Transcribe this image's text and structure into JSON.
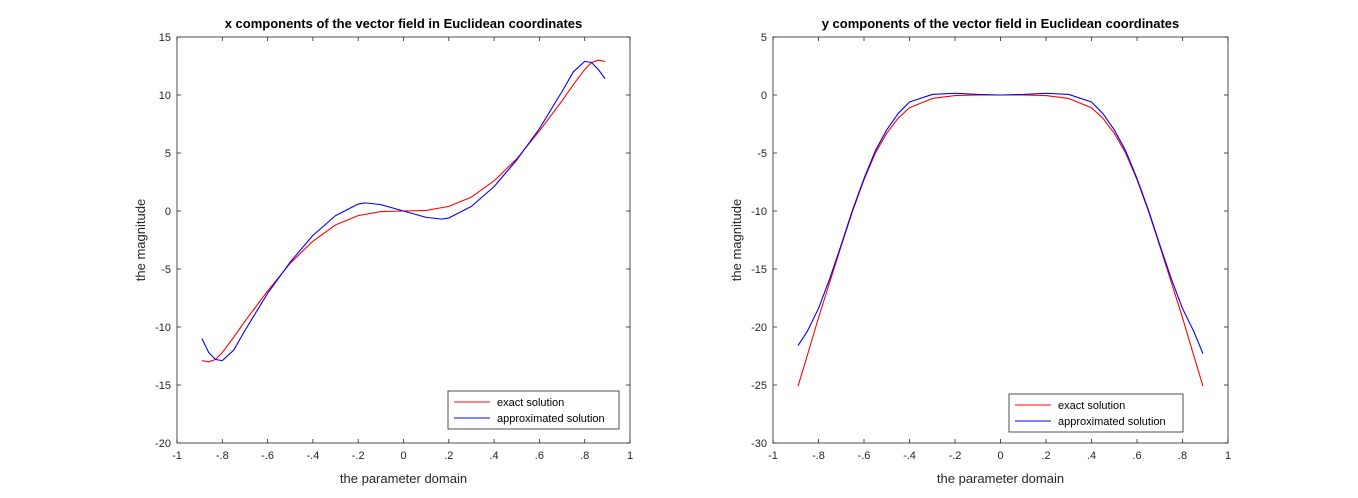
{
  "chart_data": [
    {
      "type": "line",
      "title": "x components of the vector field in Euclidean coordinates",
      "xlabel": "the parameter domain",
      "ylabel": "the magnitude",
      "xlim": [
        -1,
        1
      ],
      "ylim": [
        -20,
        15
      ],
      "xticks": [
        -1,
        -0.8,
        -0.6,
        -0.4,
        -0.2,
        0,
        0.2,
        0.4,
        0.6,
        0.8,
        1
      ],
      "yticks": [
        -20,
        -15,
        -10,
        -5,
        0,
        5,
        10,
        15
      ],
      "grid": false,
      "legend_position": "bottom-right",
      "series": [
        {
          "name": "exact solution",
          "color": "#ff0000",
          "x": [
            -0.89,
            -0.86,
            -0.83,
            -0.8,
            -0.75,
            -0.7,
            -0.6,
            -0.5,
            -0.4,
            -0.3,
            -0.2,
            -0.1,
            0,
            0.1,
            0.2,
            0.3,
            0.4,
            0.5,
            0.6,
            0.7,
            0.75,
            0.8,
            0.83,
            0.86,
            0.89
          ],
          "y": [
            -12.9,
            -13,
            -12.8,
            -12.2,
            -10.9,
            -9.5,
            -6.9,
            -4.5,
            -2.6,
            -1.2,
            -0.4,
            -0.05,
            0,
            0.05,
            0.4,
            1.2,
            2.6,
            4.5,
            6.9,
            9.5,
            10.9,
            12.2,
            12.8,
            13,
            12.9
          ]
        },
        {
          "name": "approximated solution",
          "color": "#0000ff",
          "x": [
            -0.89,
            -0.86,
            -0.83,
            -0.8,
            -0.75,
            -0.7,
            -0.6,
            -0.5,
            -0.4,
            -0.3,
            -0.2,
            -0.17,
            -0.1,
            0,
            0.1,
            0.17,
            0.2,
            0.3,
            0.4,
            0.5,
            0.6,
            0.7,
            0.75,
            0.8,
            0.83,
            0.86,
            0.89
          ],
          "y": [
            -11,
            -12.2,
            -12.8,
            -12.9,
            -12,
            -10.3,
            -7.1,
            -4.4,
            -2.1,
            -0.4,
            0.6,
            0.7,
            0.55,
            0,
            -0.55,
            -0.7,
            -0.6,
            0.4,
            2.1,
            4.4,
            7.1,
            10.3,
            12,
            12.9,
            12.8,
            12.2,
            11.4
          ]
        }
      ]
    },
    {
      "type": "line",
      "title": "y components of the vector field in Euclidean coordinates",
      "xlabel": "the parameter domain",
      "ylabel": "the magnitude",
      "xlim": [
        -1,
        1
      ],
      "ylim": [
        -30,
        5
      ],
      "xticks": [
        -1,
        -0.8,
        -0.6,
        -0.4,
        -0.2,
        0,
        0.2,
        0.4,
        0.6,
        0.8,
        1
      ],
      "yticks": [
        -30,
        -25,
        -20,
        -15,
        -10,
        -5,
        0,
        5
      ],
      "grid": false,
      "legend_position": "bottom-right",
      "series": [
        {
          "name": "exact solution",
          "color": "#ff0000",
          "x": [
            -0.89,
            -0.85,
            -0.8,
            -0.75,
            -0.7,
            -0.65,
            -0.6,
            -0.55,
            -0.5,
            -0.45,
            -0.4,
            -0.3,
            -0.2,
            -0.1,
            0,
            0.1,
            0.2,
            0.3,
            0.4,
            0.45,
            0.5,
            0.55,
            0.6,
            0.65,
            0.7,
            0.75,
            0.8,
            0.85,
            0.89
          ],
          "y": [
            -25.1,
            -22.5,
            -19.2,
            -16.1,
            -13,
            -10,
            -7.3,
            -5,
            -3.3,
            -2,
            -1.1,
            -0.3,
            -0.05,
            0,
            0,
            0,
            -0.05,
            -0.3,
            -1.1,
            -2,
            -3.3,
            -5,
            -7.3,
            -10,
            -13,
            -16.1,
            -19.2,
            -22.5,
            -25.1
          ]
        },
        {
          "name": "approximated solution",
          "color": "#0000ff",
          "x": [
            -0.89,
            -0.85,
            -0.8,
            -0.75,
            -0.7,
            -0.65,
            -0.6,
            -0.55,
            -0.5,
            -0.45,
            -0.4,
            -0.3,
            -0.2,
            -0.1,
            0,
            0.1,
            0.2,
            0.3,
            0.4,
            0.45,
            0.5,
            0.55,
            0.6,
            0.65,
            0.7,
            0.75,
            0.8,
            0.85,
            0.89
          ],
          "y": [
            -21.6,
            -20.4,
            -18.4,
            -15.8,
            -12.9,
            -9.9,
            -7.2,
            -4.8,
            -3,
            -1.6,
            -0.6,
            0.05,
            0.15,
            0.05,
            0,
            0.05,
            0.15,
            0.05,
            -0.6,
            -1.6,
            -3,
            -4.8,
            -7.2,
            -9.9,
            -12.9,
            -15.8,
            -18.4,
            -20.4,
            -22.3
          ]
        }
      ]
    }
  ]
}
